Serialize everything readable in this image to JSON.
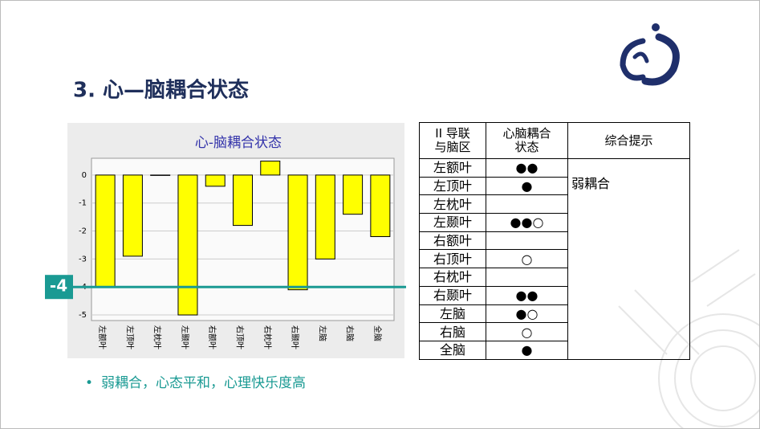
{
  "title": "3. 心—脑耦合状态",
  "chart": {
    "type": "bar",
    "title": "心-脑耦合状态",
    "categories": [
      "左额叶",
      "左顶叶",
      "左枕叶",
      "左颞叶",
      "右额叶",
      "右顶叶",
      "右枕叶",
      "右颞叶",
      "左脑",
      "右脑",
      "全脑"
    ],
    "values": [
      -4.0,
      -2.9,
      0,
      -5.0,
      -0.4,
      -1.8,
      0.5,
      -4.1,
      -3.0,
      -1.4,
      -2.2
    ],
    "color": "#ffff00",
    "ylim": [
      -5.2,
      0.6
    ],
    "yticks": [
      0,
      -1,
      -2,
      -3,
      -4,
      -5
    ],
    "grid": true,
    "threshold": -4
  },
  "table": {
    "header": [
      "II 导联\n与脑区",
      "心脑耦合\n状态",
      "综合提示"
    ],
    "rows": [
      [
        "左额叶",
        "●●"
      ],
      [
        "左顶叶",
        "●"
      ],
      [
        "左枕叶",
        ""
      ],
      [
        "左颞叶",
        "●●○"
      ],
      [
        "右额叶",
        ""
      ],
      [
        "右顶叶",
        "○"
      ],
      [
        "右枕叶",
        ""
      ],
      [
        "右颞叶",
        "●●"
      ],
      [
        "左脑",
        "●○"
      ],
      [
        "右脑",
        "○"
      ],
      [
        "全脑",
        "●"
      ]
    ],
    "tip": "弱耦合"
  },
  "bullet": "弱耦合，心态平和，心理快乐度高"
}
